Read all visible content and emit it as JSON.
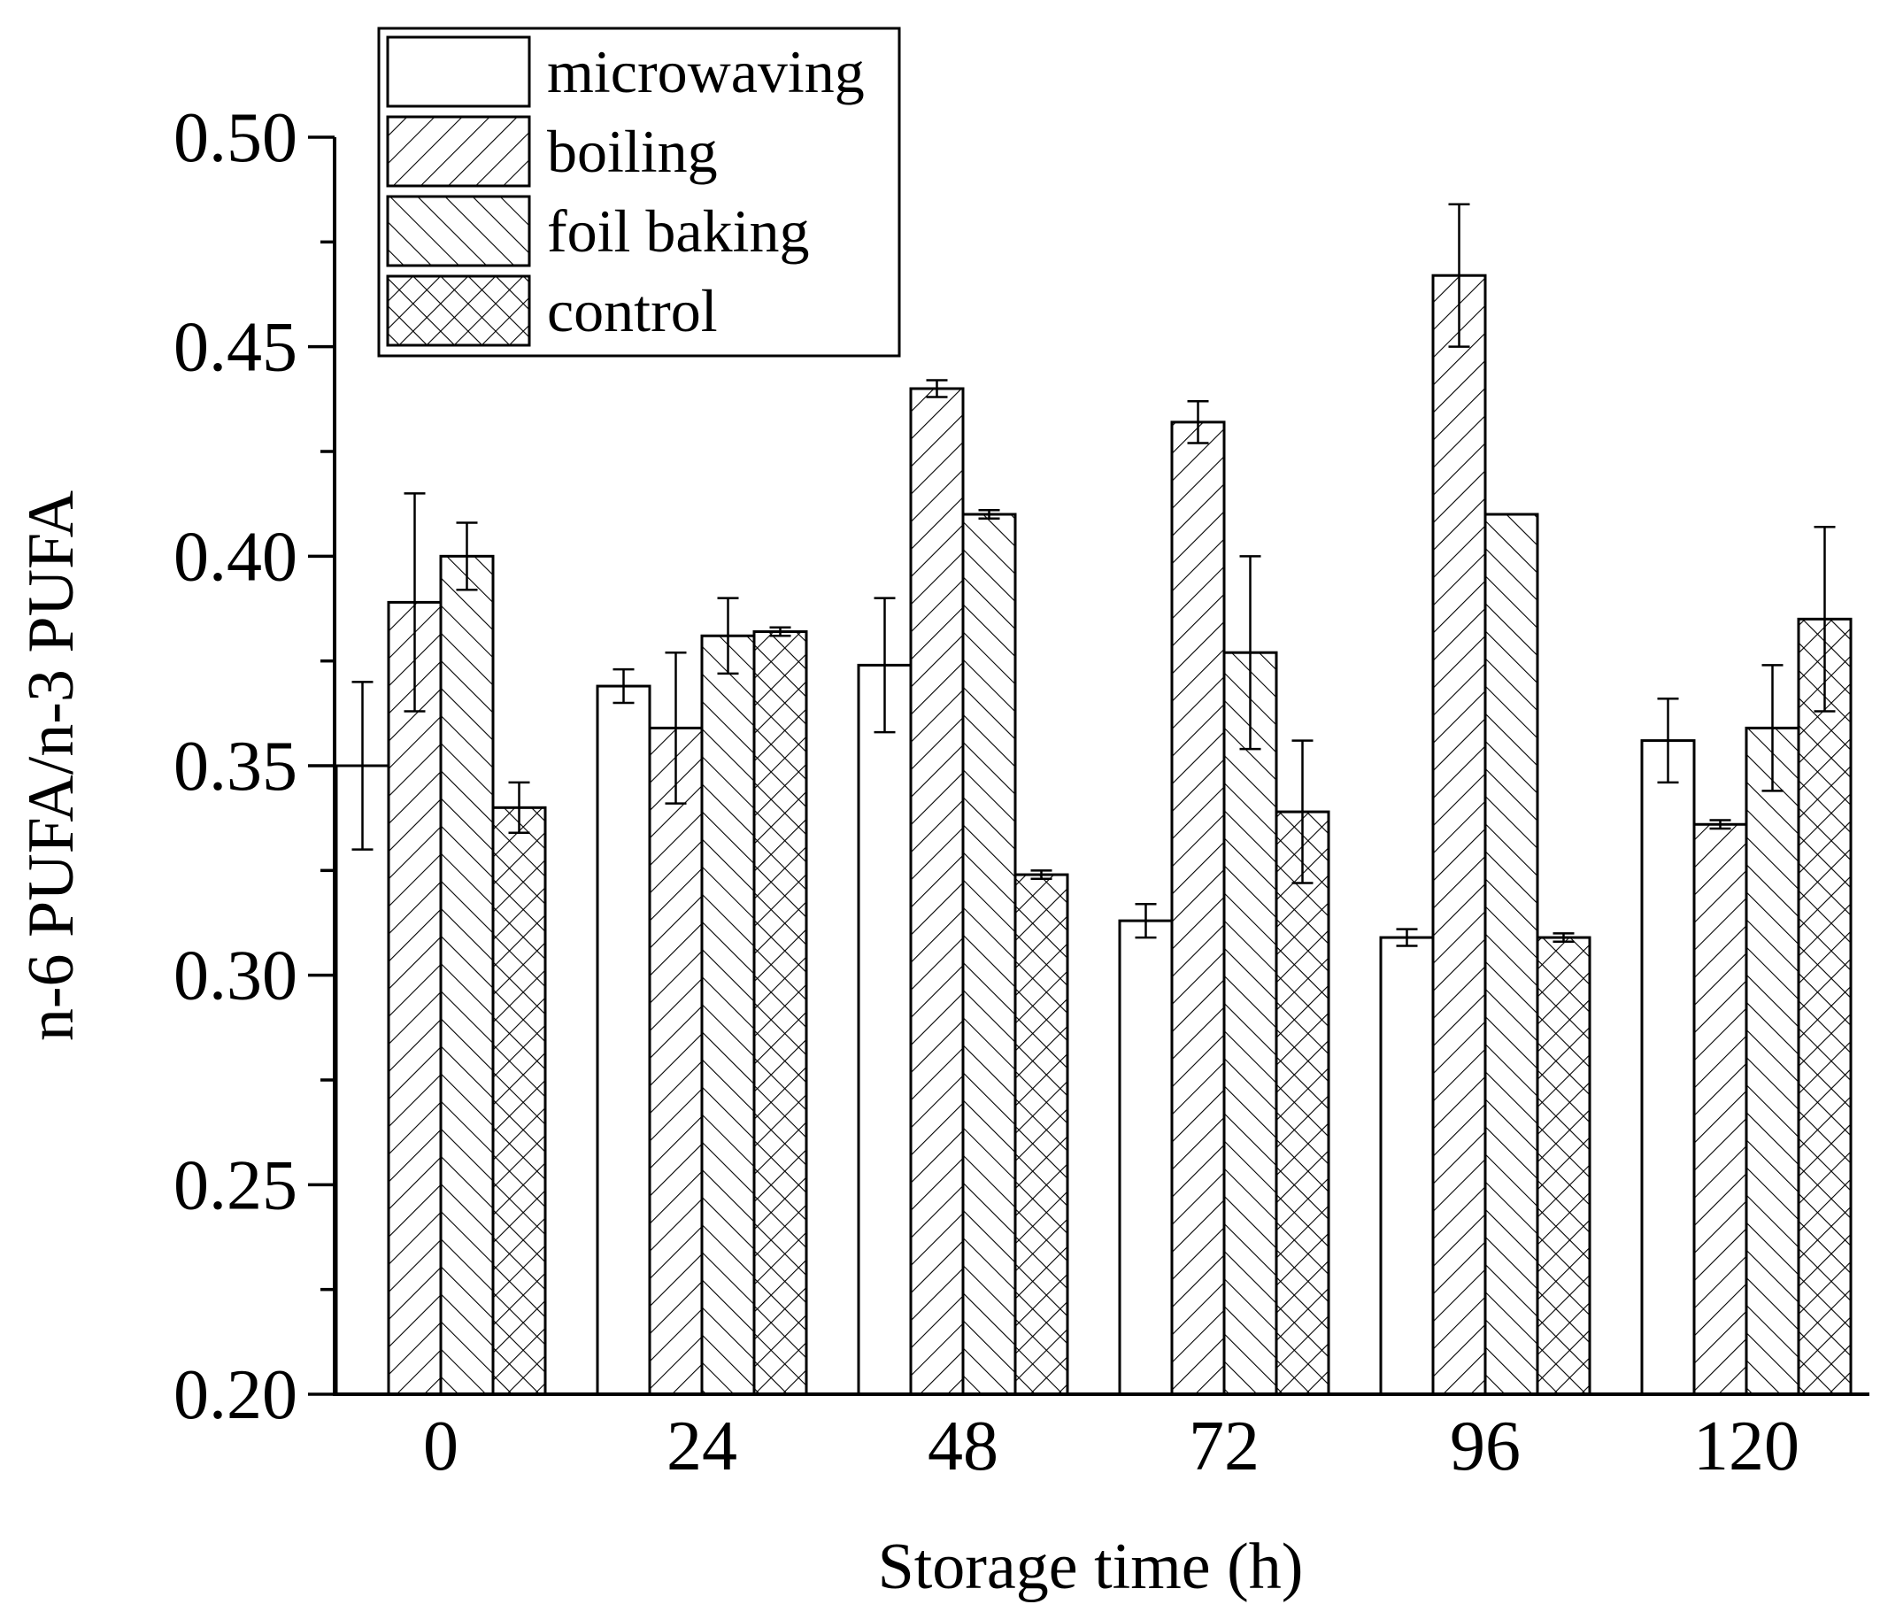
{
  "chart_data": {
    "type": "bar",
    "title": "",
    "xlabel": "Storage time (h)",
    "ylabel": "n-6 PUFA/n-3 PUFA",
    "categories": [
      "0",
      "24",
      "48",
      "72",
      "96",
      "120"
    ],
    "ylim": [
      0.2,
      0.5
    ],
    "yticks": [
      "0.20",
      "0.25",
      "0.30",
      "0.35",
      "0.40",
      "0.45",
      "0.50"
    ],
    "legend_position": "top-left",
    "series": [
      {
        "name": "microwaving",
        "pattern": "none",
        "values": [
          0.35,
          0.369,
          0.374,
          0.313,
          0.309,
          0.356
        ],
        "errors": [
          0.02,
          0.004,
          0.016,
          0.004,
          0.002,
          0.01
        ]
      },
      {
        "name": "boiling",
        "pattern": "forward-hatch",
        "values": [
          0.389,
          0.359,
          0.44,
          0.432,
          0.467,
          0.336
        ],
        "errors": [
          0.026,
          0.018,
          0.002,
          0.005,
          0.017,
          0.001
        ]
      },
      {
        "name": "foil baking",
        "pattern": "back-hatch",
        "values": [
          0.4,
          0.381,
          0.41,
          0.377,
          0.41,
          0.359
        ],
        "errors": [
          0.008,
          0.009,
          0.001,
          0.023,
          0.0,
          0.015
        ]
      },
      {
        "name": "control",
        "pattern": "cross-hatch",
        "values": [
          0.34,
          0.382,
          0.324,
          0.339,
          0.309,
          0.385
        ],
        "errors": [
          0.006,
          0.001,
          0.001,
          0.017,
          0.001,
          0.022
        ]
      }
    ]
  }
}
